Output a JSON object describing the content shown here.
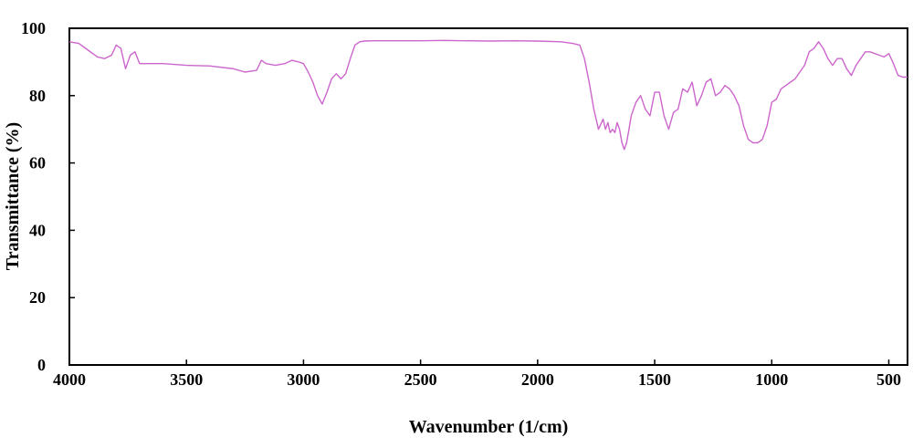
{
  "chart_data": {
    "type": "line",
    "title": "",
    "xlabel": "Wavenumber (1/cm)",
    "ylabel": "Transmittance (%)",
    "xlim": [
      4000,
      420
    ],
    "ylim": [
      0,
      100
    ],
    "x_reversed": true,
    "x_ticks": [
      4000,
      3500,
      3000,
      2500,
      2000,
      1500,
      1000,
      500
    ],
    "y_ticks": [
      0,
      20,
      40,
      60,
      80,
      100
    ],
    "grid": false,
    "legend": "none",
    "line_color": "#cc66cc",
    "series": [
      {
        "x": [
          4000,
          3960,
          3920,
          3880,
          3850,
          3820,
          3800,
          3780,
          3760,
          3740,
          3720,
          3700,
          3680,
          3660,
          3600,
          3500,
          3400,
          3300,
          3250,
          3200,
          3180,
          3160,
          3120,
          3080,
          3050,
          3020,
          3000,
          2980,
          2960,
          2940,
          2920,
          2900,
          2880,
          2860,
          2840,
          2820,
          2800,
          2780,
          2760,
          2740,
          2700,
          2600,
          2500,
          2400,
          2300,
          2200,
          2100,
          2000,
          1900,
          1850,
          1820,
          1800,
          1780,
          1760,
          1740,
          1720,
          1710,
          1700,
          1690,
          1680,
          1670,
          1660,
          1650,
          1640,
          1630,
          1620,
          1610,
          1600,
          1580,
          1560,
          1540,
          1520,
          1500,
          1480,
          1460,
          1440,
          1420,
          1400,
          1380,
          1360,
          1340,
          1320,
          1300,
          1280,
          1260,
          1240,
          1220,
          1200,
          1180,
          1160,
          1140,
          1120,
          1100,
          1080,
          1060,
          1040,
          1020,
          1000,
          980,
          960,
          940,
          920,
          900,
          880,
          860,
          840,
          820,
          800,
          780,
          760,
          740,
          720,
          700,
          680,
          660,
          640,
          620,
          600,
          580,
          560,
          540,
          520,
          500,
          480,
          460,
          440,
          420
        ],
        "y": [
          96,
          95.5,
          93.5,
          91.5,
          91,
          92,
          95,
          94,
          88,
          92,
          93,
          89.5,
          89.5,
          89.5,
          89.5,
          89,
          88.8,
          88,
          87,
          87.5,
          90.5,
          89.5,
          89,
          89.5,
          90.5,
          90,
          89.5,
          87,
          84,
          80,
          77.5,
          81,
          85,
          86.5,
          85,
          86.5,
          91,
          95,
          96,
          96.2,
          96.3,
          96.3,
          96.3,
          96.4,
          96.3,
          96.2,
          96.3,
          96.2,
          96,
          95.5,
          95,
          91,
          84,
          76,
          70,
          73,
          70,
          72,
          69,
          70,
          69,
          72,
          70,
          66,
          64,
          66,
          70,
          74,
          78,
          80,
          76,
          74,
          81,
          81,
          74,
          70,
          75,
          76,
          82,
          81,
          84,
          77,
          80,
          84,
          85,
          80,
          81,
          83,
          82,
          80,
          77,
          71,
          67,
          66,
          66,
          67,
          71,
          78,
          79,
          82,
          83,
          84,
          85,
          87,
          89,
          93,
          94,
          96,
          94,
          91,
          89,
          91,
          91,
          88,
          86,
          89,
          91,
          93,
          93,
          92.5,
          92,
          91.5,
          92.5,
          89.5,
          86,
          85.5,
          85.5
        ]
      }
    ]
  }
}
